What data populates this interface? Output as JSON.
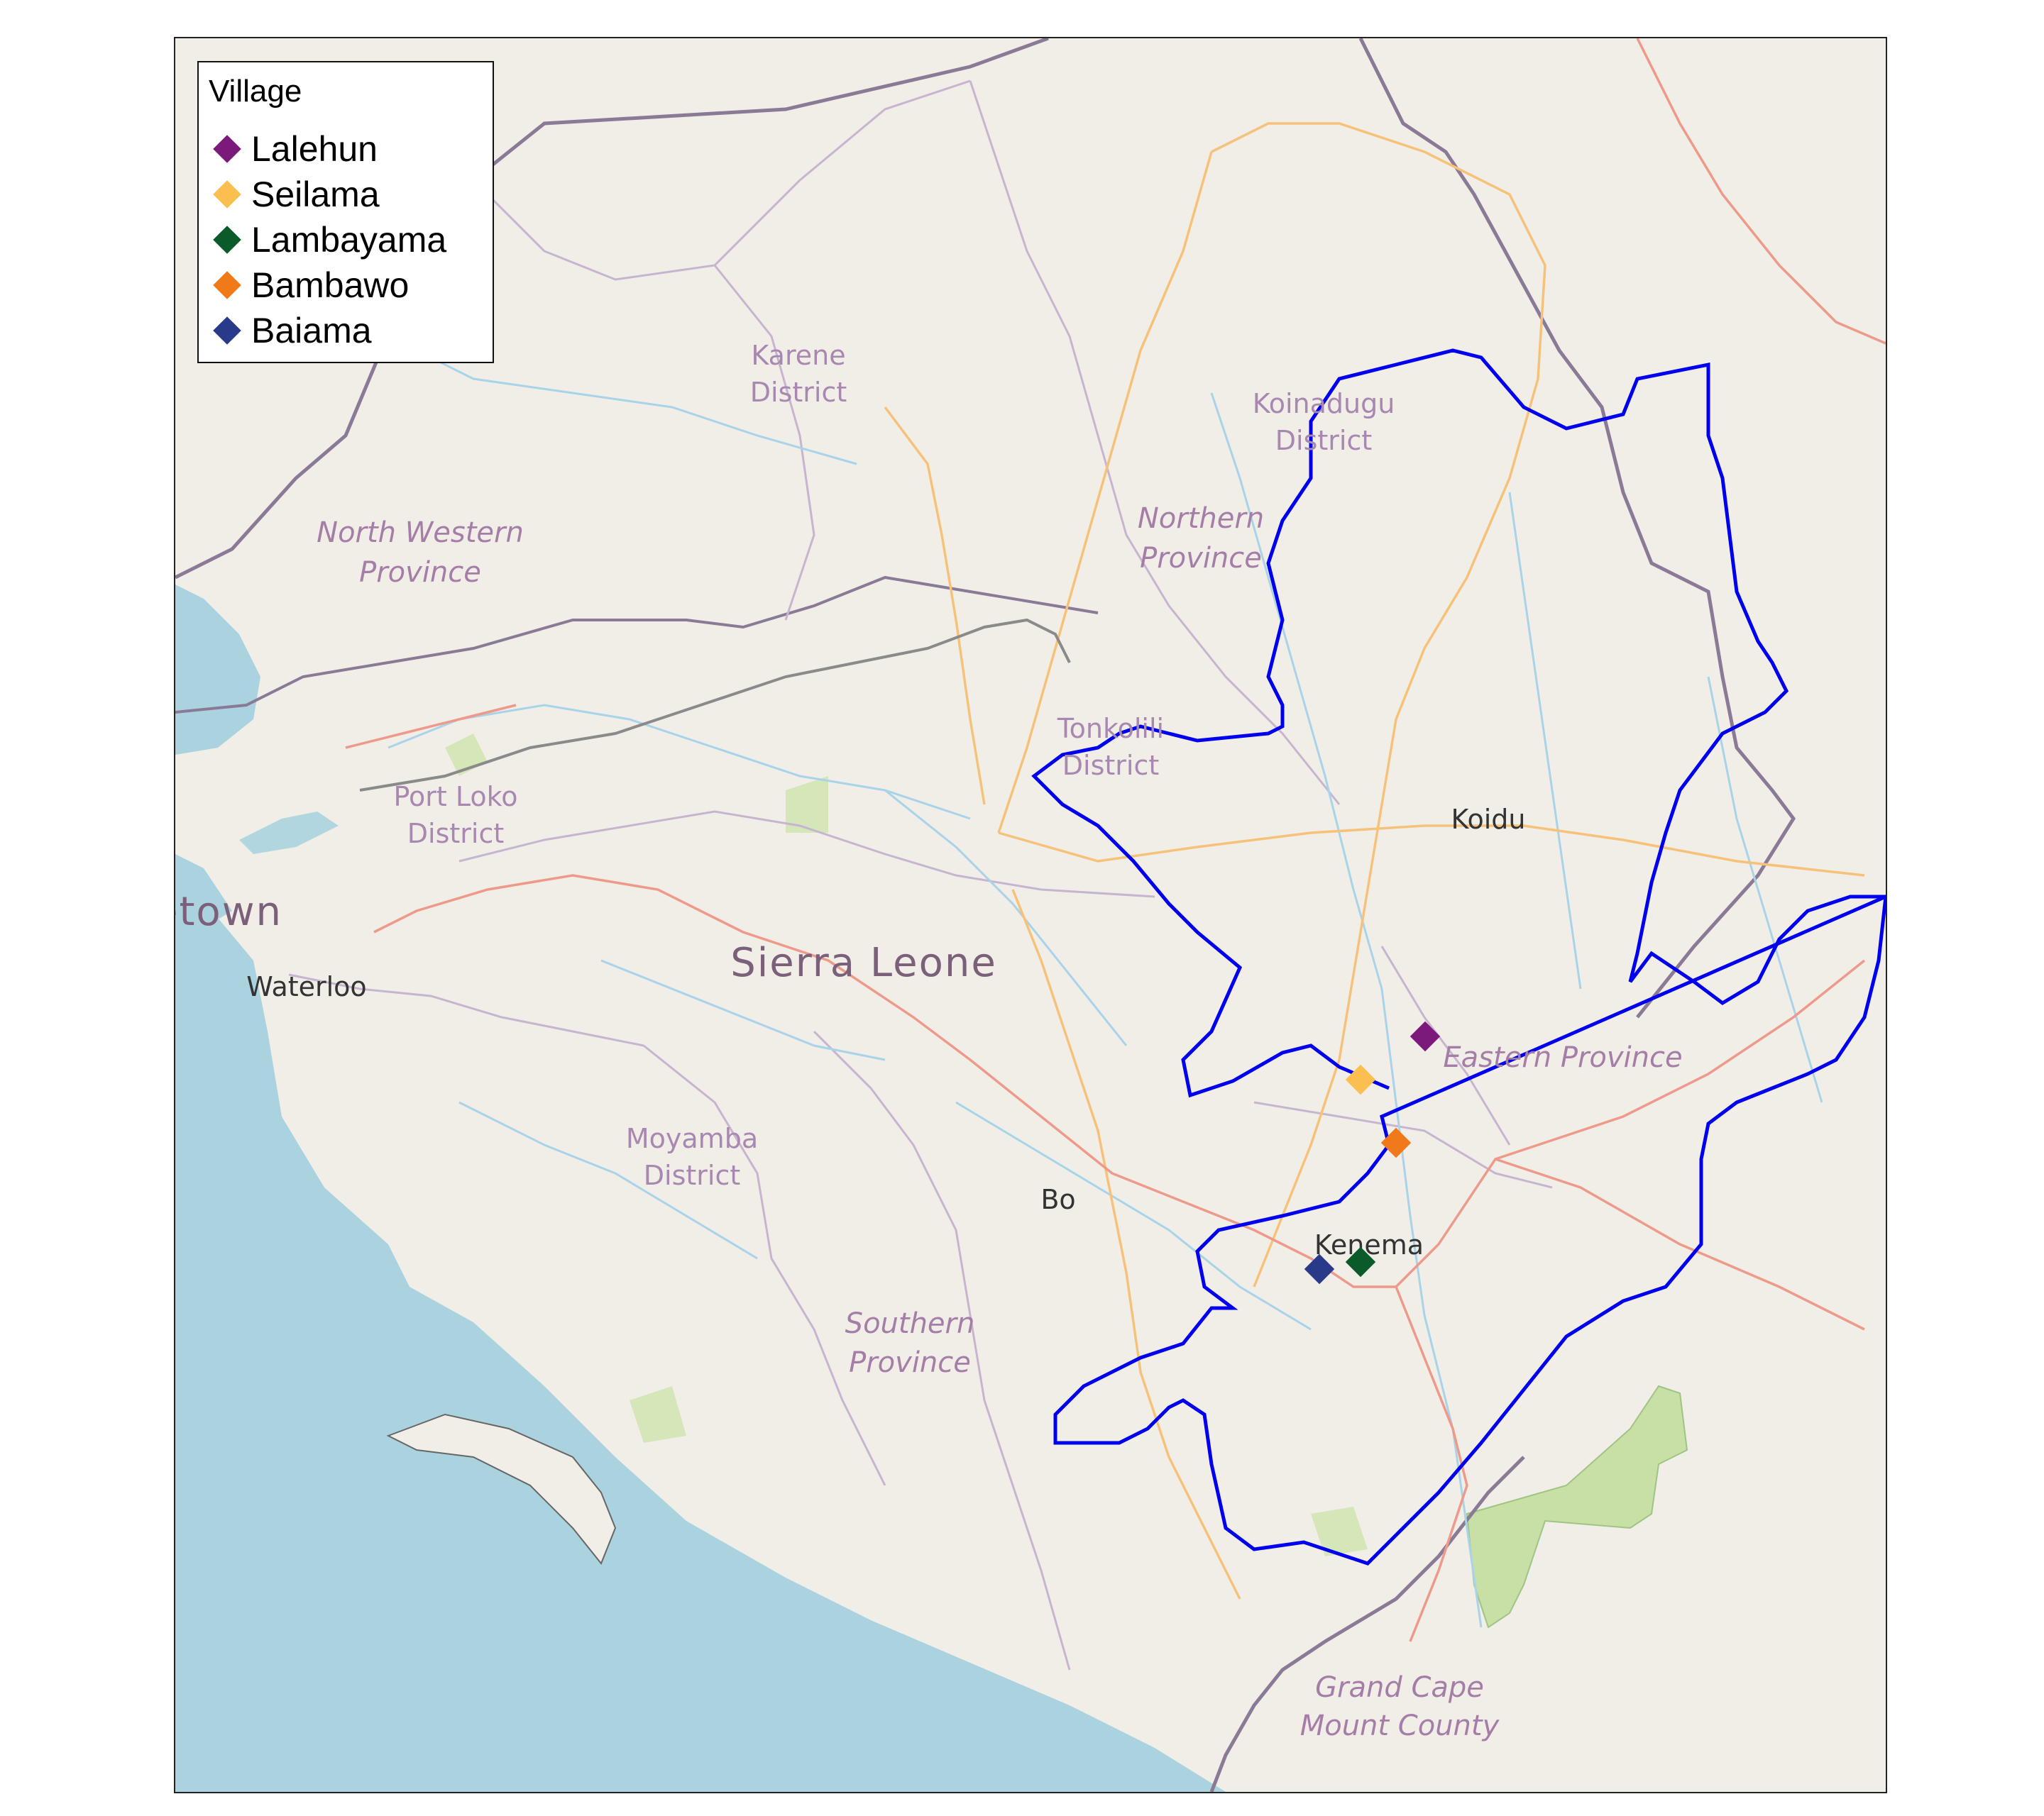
{
  "legend": {
    "title": "Village",
    "items": [
      {
        "label": "Lalehun",
        "color": "#7b1a7b"
      },
      {
        "label": "Seilama",
        "color": "#fbbf4f"
      },
      {
        "label": "Lambayama",
        "color": "#0a5a2a"
      },
      {
        "label": "Bambawo",
        "color": "#f07a1a"
      },
      {
        "label": "Baiama",
        "color": "#2a3a8a"
      }
    ]
  },
  "labels": {
    "country": "Sierra Leone",
    "nw_province_1": "North Western",
    "nw_province_2": "Province",
    "n_province_1": "Northern",
    "n_province_2": "Province",
    "e_province": "Eastern Province",
    "s_province_1": "Southern",
    "s_province_2": "Province",
    "karene_1": "Karene",
    "karene_2": "District",
    "koinadugu_1": "Koinadugu",
    "koinadugu_2": "District",
    "tonkolili_1": "Tonkolili",
    "tonkolili_2": "District",
    "portloko_1": "Port Loko",
    "portloko_2": "District",
    "moyamba_1": "Moyamba",
    "moyamba_2": "District",
    "gcm_1": "Grand Cape",
    "gcm_2": "Mount County",
    "koidu": "Koidu",
    "bo": "Bo",
    "kenema": "Kenema",
    "waterloo": "Waterloo",
    "freetown": "etown"
  },
  "colors": {
    "land": "#f1eee8",
    "sea": "#aad3df",
    "outline": "#0000ee",
    "park": "#c8dfa6"
  }
}
